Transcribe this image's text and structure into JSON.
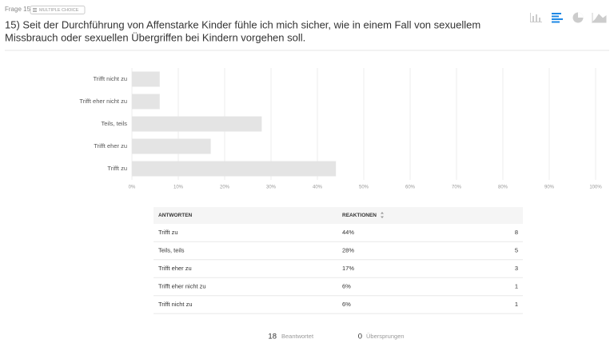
{
  "header": {
    "question_number": "Frage 15",
    "badge": "MULTIPLE CHOICE",
    "title_lines": [
      "15) Seit der Durchführung von Affenstarke Kinder fühle ich mich sicher, wie in einem Fall von sexuellem",
      "Missbrauch oder sexuellen Übergriffen bei Kindern vorgehen soll."
    ]
  },
  "chart_data": {
    "type": "bar",
    "orientation": "horizontal",
    "categories": [
      "Trifft nicht zu",
      "Trifft eher nicht zu",
      "Teils, teils",
      "Trifft eher zu",
      "Trifft zu"
    ],
    "values": [
      6,
      6,
      28,
      17,
      44
    ],
    "color": "#e4e4e4",
    "grid": true,
    "xlim": [
      0,
      100
    ],
    "xticks": [
      {
        "value": 0,
        "label": "0%"
      },
      {
        "value": 10,
        "label": "10%"
      },
      {
        "value": 20,
        "label": "20%"
      },
      {
        "value": 30,
        "label": "30%"
      },
      {
        "value": 40,
        "label": "40%"
      },
      {
        "value": 50,
        "label": "50%"
      },
      {
        "value": 60,
        "label": "60%"
      },
      {
        "value": 70,
        "label": "70%"
      },
      {
        "value": 80,
        "label": "80%"
      },
      {
        "value": 90,
        "label": "90%"
      },
      {
        "value": 100,
        "label": "100%"
      }
    ]
  },
  "table": {
    "columns": [
      "ANTWORTEN",
      "REAKTIONEN"
    ],
    "rows": [
      [
        "Trifft zu",
        "44%",
        8
      ],
      [
        "Teils, teils",
        "28%",
        5
      ],
      [
        "Trifft eher zu",
        "17%",
        3
      ],
      [
        "Trifft eher nicht zu",
        "6%",
        1
      ],
      [
        "Trifft nicht zu",
        "6%",
        1
      ]
    ]
  },
  "footer": {
    "answered": {
      "count": 18,
      "label": "Beantwortet"
    },
    "skipped": {
      "count": 0,
      "label": "Übersprungen"
    }
  }
}
